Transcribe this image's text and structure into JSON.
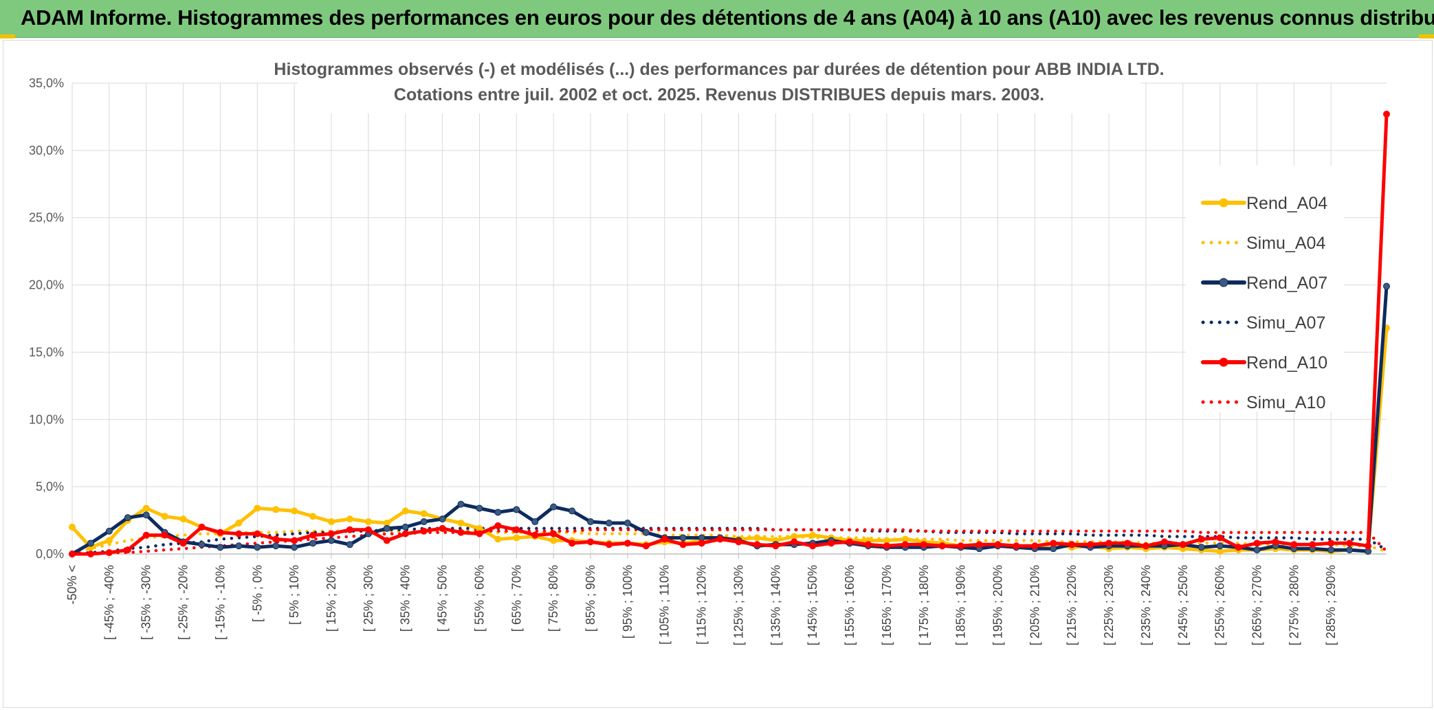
{
  "header": {
    "title": "ADAM Informe. Histogrammes des performances en euros pour des détentions de 4 ans (A04) à 10 ans (A10) avec les revenus connus distribués"
  },
  "chart_data": {
    "type": "line",
    "title_line1": "Histogrammes observés (-) et modélisés (...) des performances par durées de détention pour ABB INDIA LTD.",
    "title_line2": "Cotations entre juil. 2002 et oct. 2025. Revenus DISTRIBUES depuis mars. 2003.",
    "ylim": [
      0,
      35
    ],
    "y_ticks": [
      "0,0%",
      "5,0%",
      "10,0%",
      "15,0%",
      "20,0%",
      "25,0%",
      "30,0%",
      "35,0%"
    ],
    "grid": true,
    "legend_position": "top-right",
    "x_labels": [
      "-50% <",
      "[ -45% ; -40%",
      "[ -35% ; -30%",
      "[ -25% ; -20%",
      "[ -15% ; -10%",
      "[ -5% ; 0%",
      "[ 5% ; 10%",
      "[ 15% ; 20%",
      "[ 25% ; 30%",
      "[ 35% ; 40%",
      "[ 45% ; 50%",
      "[ 55% ; 60%",
      "[ 65% ; 70%",
      "[ 75% ; 80%",
      "[ 85% ; 90%",
      "[ 95% ; 100%",
      "[ 105% ; 110%",
      "[ 115% ; 120%",
      "[ 125% ; 130%",
      "[ 135% ; 140%",
      "[ 145% ; 150%",
      "[ 155% ; 160%",
      "[ 165% ; 170%",
      "[ 175% ; 180%",
      "[ 185% ; 190%",
      "[ 195% ; 200%",
      "[ 205% ; 210%",
      "[ 215% ; 220%",
      "[ 225% ; 230%",
      "[ 235% ; 240%",
      "[ 245% ; 250%",
      "[ 255% ; 260%",
      "[ 265% ; 270%",
      "[ 275% ; 280%",
      "[ 285% ; 290%"
    ],
    "series": [
      {
        "name": "Rend_A04",
        "color": "#ffc000",
        "style": "solid",
        "markers": true,
        "values": [
          2.0,
          0.5,
          1.0,
          2.5,
          3.4,
          2.8,
          2.6,
          2.0,
          1.5,
          2.3,
          3.4,
          3.3,
          3.2,
          2.8,
          2.4,
          2.6,
          2.4,
          2.3,
          3.2,
          3.0,
          2.6,
          2.3,
          1.9,
          1.1,
          1.2,
          1.3,
          1.0,
          1.0,
          0.9,
          0.8,
          0.8,
          0.7,
          0.9,
          0.8,
          1.0,
          1.2,
          1.1,
          1.2,
          1.0,
          1.3,
          1.4,
          1.2,
          1.0,
          1.0,
          1.0,
          1.1,
          0.9,
          0.8,
          0.6,
          0.7,
          0.7,
          0.6,
          0.6,
          0.7,
          0.5,
          0.6,
          0.4,
          0.5,
          0.4,
          0.5,
          0.4,
          0.3,
          0.2,
          0.3,
          0.3,
          0.4,
          0.3,
          0.3,
          0.2,
          0.3,
          0.2,
          16.8
        ]
      },
      {
        "name": "Simu_A04",
        "color": "#ffc000",
        "style": "dotted",
        "markers": false,
        "values": [
          0.1,
          0.4,
          0.7,
          1.0,
          1.2,
          1.3,
          1.4,
          1.5,
          1.5,
          1.6,
          1.6,
          1.6,
          1.7,
          1.7,
          1.7,
          1.7,
          1.7,
          1.7,
          1.7,
          1.7,
          1.7,
          1.7,
          1.7,
          1.6,
          1.6,
          1.6,
          1.6,
          1.6,
          1.5,
          1.5,
          1.5,
          1.5,
          1.4,
          1.4,
          1.4,
          1.4,
          1.3,
          1.3,
          1.3,
          1.3,
          1.2,
          1.2,
          1.2,
          1.2,
          1.1,
          1.1,
          1.1,
          1.1,
          1.0,
          1.0,
          1.0,
          1.0,
          1.0,
          0.9,
          0.9,
          0.9,
          0.9,
          0.9,
          0.8,
          0.8,
          0.8,
          0.8,
          0.8,
          0.8,
          0.7,
          0.7,
          0.7,
          0.7,
          0.7,
          0.6,
          0.6,
          0.2
        ]
      },
      {
        "name": "Rend_A07",
        "color": "#0d2b5e",
        "style": "solid",
        "markers": true,
        "values": [
          0.0,
          0.8,
          1.7,
          2.7,
          2.9,
          1.6,
          0.9,
          0.7,
          0.5,
          0.6,
          0.5,
          0.6,
          0.5,
          0.8,
          1.0,
          0.7,
          1.5,
          1.9,
          2.0,
          2.4,
          2.6,
          3.7,
          3.4,
          3.1,
          3.3,
          2.4,
          3.5,
          3.2,
          2.4,
          2.3,
          2.3,
          1.6,
          1.2,
          1.2,
          1.2,
          1.2,
          1.0,
          0.6,
          0.7,
          0.7,
          0.8,
          1.0,
          0.8,
          0.6,
          0.5,
          0.5,
          0.5,
          0.6,
          0.5,
          0.4,
          0.6,
          0.5,
          0.4,
          0.4,
          0.7,
          0.5,
          0.6,
          0.6,
          0.6,
          0.6,
          0.7,
          0.5,
          0.6,
          0.5,
          0.3,
          0.6,
          0.4,
          0.4,
          0.3,
          0.3,
          0.2,
          19.9
        ]
      },
      {
        "name": "Simu_A07",
        "color": "#0d2b5e",
        "style": "dotted",
        "markers": false,
        "values": [
          0.0,
          0.1,
          0.2,
          0.4,
          0.5,
          0.7,
          0.8,
          0.9,
          1.1,
          1.2,
          1.3,
          1.4,
          1.5,
          1.6,
          1.6,
          1.7,
          1.7,
          1.8,
          1.8,
          1.9,
          1.9,
          1.9,
          1.9,
          1.9,
          1.9,
          1.9,
          1.9,
          1.9,
          1.9,
          1.9,
          1.9,
          1.9,
          1.9,
          1.9,
          1.9,
          1.9,
          1.9,
          1.9,
          1.8,
          1.8,
          1.8,
          1.8,
          1.8,
          1.7,
          1.7,
          1.7,
          1.7,
          1.6,
          1.6,
          1.6,
          1.6,
          1.5,
          1.5,
          1.5,
          1.5,
          1.4,
          1.4,
          1.4,
          1.4,
          1.3,
          1.3,
          1.3,
          1.3,
          1.2,
          1.2,
          1.2,
          1.2,
          1.1,
          1.1,
          1.1,
          1.1,
          0.3
        ]
      },
      {
        "name": "Rend_A10",
        "color": "#ff0000",
        "style": "solid",
        "markers": true,
        "values": [
          0.0,
          0.0,
          0.1,
          0.3,
          1.4,
          1.4,
          0.8,
          2.0,
          1.6,
          1.5,
          1.5,
          1.1,
          1.0,
          1.4,
          1.5,
          1.8,
          1.8,
          1.0,
          1.5,
          1.7,
          1.9,
          1.6,
          1.5,
          2.1,
          1.8,
          1.4,
          1.5,
          0.8,
          0.9,
          0.7,
          0.8,
          0.6,
          1.1,
          0.7,
          0.8,
          1.1,
          0.9,
          0.7,
          0.6,
          0.9,
          0.6,
          0.8,
          0.9,
          0.7,
          0.6,
          0.7,
          0.7,
          0.6,
          0.6,
          0.7,
          0.7,
          0.6,
          0.6,
          0.8,
          0.7,
          0.7,
          0.8,
          0.8,
          0.6,
          0.9,
          0.7,
          1.1,
          1.2,
          0.5,
          0.8,
          0.9,
          0.7,
          0.7,
          0.8,
          0.8,
          0.6,
          32.7
        ]
      },
      {
        "name": "Simu_A10",
        "color": "#ff0000",
        "style": "dotted",
        "markers": false,
        "values": [
          0.0,
          0.0,
          0.1,
          0.1,
          0.2,
          0.3,
          0.4,
          0.5,
          0.6,
          0.7,
          0.8,
          0.9,
          1.0,
          1.1,
          1.2,
          1.3,
          1.4,
          1.5,
          1.5,
          1.6,
          1.6,
          1.6,
          1.7,
          1.7,
          1.7,
          1.7,
          1.7,
          1.7,
          1.8,
          1.8,
          1.8,
          1.8,
          1.8,
          1.8,
          1.8,
          1.8,
          1.8,
          1.8,
          1.8,
          1.8,
          1.8,
          1.8,
          1.8,
          1.8,
          1.8,
          1.8,
          1.7,
          1.7,
          1.7,
          1.7,
          1.7,
          1.7,
          1.7,
          1.7,
          1.7,
          1.7,
          1.7,
          1.7,
          1.7,
          1.7,
          1.7,
          1.6,
          1.6,
          1.6,
          1.6,
          1.6,
          1.6,
          1.6,
          1.6,
          1.6,
          1.6,
          0.2
        ]
      }
    ]
  }
}
